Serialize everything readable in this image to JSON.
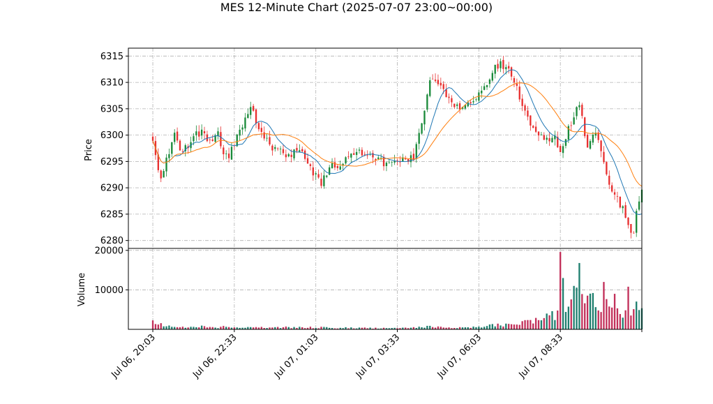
{
  "chart_data": {
    "type": "candlestick",
    "title": "MES 12-Minute Chart (2025-07-07 23:00~00:00)",
    "ylabel_price": "Price",
    "ylabel_volume": "Volume",
    "price_ylim": [
      6278.5,
      6316.5
    ],
    "price_yticks": [
      6280,
      6285,
      6290,
      6295,
      6300,
      6305,
      6310,
      6315
    ],
    "volume_ylim": [
      0,
      20500
    ],
    "volume_yticks": [
      10000,
      20000
    ],
    "xlim": [
      -9,
      180
    ],
    "xtick_labels": [
      "Jul 06, 20:03",
      "Jul 06, 22:33",
      "Jul 07, 01:03",
      "Jul 07, 03:33",
      "Jul 07, 06:03",
      "Jul 07, 08:33",
      ""
    ],
    "xtick_index": [
      0,
      30,
      60,
      90,
      120,
      150,
      180
    ],
    "grid": true,
    "colors": {
      "up": "#1a8a3a",
      "down": "#e83030",
      "ma_fast": "#1f77b4",
      "ma_slow": "#ff7f0e",
      "vol_up": "#1f7f6f",
      "vol_down": "#c2305a",
      "grid": "#b0b0b0"
    },
    "ma_fast_period": 9,
    "ma_slow_period": 20,
    "anchors": [
      [
        0,
        6299,
        2000
      ],
      [
        3,
        6291,
        1200
      ],
      [
        5,
        6295,
        900
      ],
      [
        8,
        6300,
        700
      ],
      [
        10,
        6297,
        600
      ],
      [
        14,
        6298,
        600
      ],
      [
        16,
        6300,
        700
      ],
      [
        18,
        6301,
        700
      ],
      [
        20,
        6299,
        600
      ],
      [
        24,
        6300,
        500
      ],
      [
        26,
        6297,
        600
      ],
      [
        28,
        6296,
        500
      ],
      [
        30,
        6298,
        400
      ],
      [
        33,
        6302,
        400
      ],
      [
        36,
        6305,
        500
      ],
      [
        38,
        6303,
        500
      ],
      [
        40,
        6300,
        500
      ],
      [
        43,
        6298,
        500
      ],
      [
        46,
        6297,
        500
      ],
      [
        50,
        6296,
        500
      ],
      [
        53,
        6297,
        500
      ],
      [
        56,
        6296,
        500
      ],
      [
        60,
        6292,
        500
      ],
      [
        62,
        6291,
        500
      ],
      [
        66,
        6294,
        400
      ],
      [
        70,
        6295,
        400
      ],
      [
        74,
        6296,
        400
      ],
      [
        78,
        6297,
        400
      ],
      [
        82,
        6296,
        300
      ],
      [
        86,
        6294,
        300
      ],
      [
        88,
        6295,
        300
      ],
      [
        92,
        6295,
        300
      ],
      [
        96,
        6296,
        400
      ],
      [
        99,
        6303,
        500
      ],
      [
        102,
        6310,
        800
      ],
      [
        105,
        6310,
        600
      ],
      [
        108,
        6307,
        500
      ],
      [
        110,
        6306,
        400
      ],
      [
        113,
        6305,
        400
      ],
      [
        116,
        6306,
        400
      ],
      [
        118,
        6307,
        500
      ],
      [
        121,
        6308,
        700
      ],
      [
        125,
        6312,
        1000
      ],
      [
        128,
        6314,
        1200
      ],
      [
        131,
        6312,
        1400
      ],
      [
        134,
        6309,
        1500
      ],
      [
        137,
        6304,
        1700
      ],
      [
        140,
        6301,
        2200
      ],
      [
        143,
        6300,
        2800
      ],
      [
        146,
        6299,
        3500
      ],
      [
        148,
        6300,
        4200
      ],
      [
        150,
        6296,
        6000
      ],
      [
        153,
        6301,
        8000
      ],
      [
        157,
        6306,
        9500
      ],
      [
        160,
        6297,
        8200
      ],
      [
        163,
        6301,
        7500
      ],
      [
        166,
        6295,
        7000
      ],
      [
        168,
        6290,
        6500
      ],
      [
        171,
        6288,
        5500
      ],
      [
        174,
        6285,
        5000
      ],
      [
        176,
        6282,
        4800
      ],
      [
        177,
        6281,
        5000
      ],
      [
        178,
        6286,
        6000
      ],
      [
        180,
        6289,
        7000
      ]
    ],
    "volume_spikes": [
      [
        150,
        19600
      ],
      [
        151,
        13000
      ],
      [
        155,
        11000
      ],
      [
        157,
        16800
      ],
      [
        162,
        9200
      ],
      [
        166,
        12000
      ],
      [
        170,
        9000
      ],
      [
        175,
        10800
      ]
    ],
    "seed": 20250707
  }
}
